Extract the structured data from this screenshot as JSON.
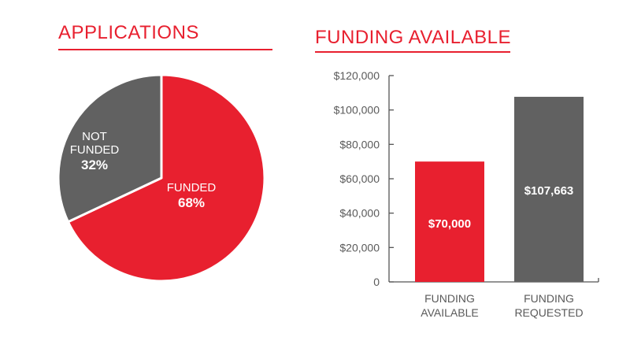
{
  "colors": {
    "accent": "#e8202f",
    "secondary": "#616161",
    "axis": "#555555",
    "axis_text": "#5a5a5a",
    "label_light": "#ffffff"
  },
  "chart_data": [
    {
      "type": "pie",
      "title": "APPLICATIONS",
      "slices": [
        {
          "label_lines": [
            "FUNDED"
          ],
          "value": 68,
          "value_label": "68%",
          "color": "#e8202f"
        },
        {
          "label_lines": [
            "NOT",
            "FUNDED"
          ],
          "value": 32,
          "value_label": "32%",
          "color": "#616161"
        }
      ]
    },
    {
      "type": "bar",
      "title": "FUNDING AVAILABLE",
      "categories": [
        {
          "lines": [
            "FUNDING",
            "AVAILABLE"
          ]
        },
        {
          "lines": [
            "FUNDING",
            "REQUESTED"
          ]
        }
      ],
      "values": [
        70000,
        107663
      ],
      "value_labels": [
        "$70,000",
        "$107,663"
      ],
      "bar_colors": [
        "#e8202f",
        "#616161"
      ],
      "ylim": [
        0,
        120000
      ],
      "yticks": [
        0,
        20000,
        40000,
        60000,
        80000,
        100000,
        120000
      ],
      "ytick_labels": [
        "0",
        "$20,000",
        "$40,000",
        "$60,000",
        "$80,000",
        "$100,000",
        "$120,000"
      ],
      "xlabel": "",
      "ylabel": "",
      "grid": false
    }
  ]
}
